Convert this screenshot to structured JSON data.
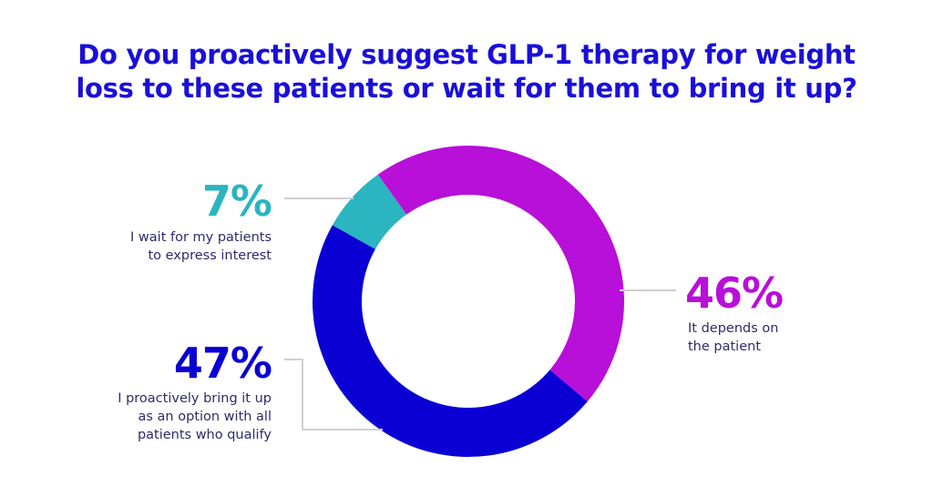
{
  "chart_data": {
    "type": "pie",
    "donut": true,
    "title": [
      "Do you proactively suggest GLP-1 therapy for weight",
      "loss to these patients or wait for them to bring it up?"
    ],
    "slices": [
      {
        "value": 46,
        "label": "46%",
        "description": [
          "It depends on",
          "the patient"
        ],
        "color": "#b80fd9"
      },
      {
        "value": 47,
        "label": "47%",
        "description": [
          "I proactively bring it up",
          "as an option with all",
          "patients who qualify"
        ],
        "color": "#0b00d4"
      },
      {
        "value": 7,
        "label": "7%",
        "description": [
          "I wait for my patients",
          "to express interest"
        ],
        "color": "#2ab5c0"
      }
    ]
  }
}
